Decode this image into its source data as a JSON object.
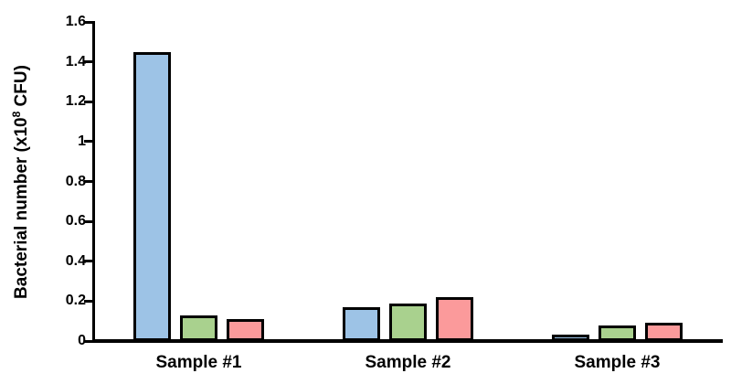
{
  "chart_data": {
    "type": "bar",
    "title": "",
    "ylabel": "Bacterial number (x10^8 CFU)",
    "ylabel_parts": {
      "pre": "Bacterial number (x10",
      "sup": "8",
      "post": " CFU)"
    },
    "xlabel": "",
    "categories": [
      "Sample #1",
      "Sample #2",
      "Sample #3"
    ],
    "series": [
      {
        "name": "blue",
        "color": "#9DC3E6",
        "values": [
          1.45,
          0.17,
          0.03
        ]
      },
      {
        "name": "green",
        "color": "#A9D18E",
        "values": [
          0.13,
          0.19,
          0.08
        ]
      },
      {
        "name": "red",
        "color": "#FB9A9B",
        "values": [
          0.11,
          0.22,
          0.09
        ]
      }
    ],
    "ylim": [
      0,
      1.6
    ],
    "yticks": [
      0,
      0.2,
      0.4,
      0.6,
      0.8,
      1,
      1.2,
      1.4,
      1.6
    ],
    "ytick_labels": [
      "0",
      "0.2",
      "0.4",
      "0.6",
      "0.8",
      "1",
      "1.2",
      "1.4",
      "1.6"
    ],
    "bar_outline_color": "#000000",
    "axis_color": "#000000",
    "legend": "none",
    "grid": false
  }
}
